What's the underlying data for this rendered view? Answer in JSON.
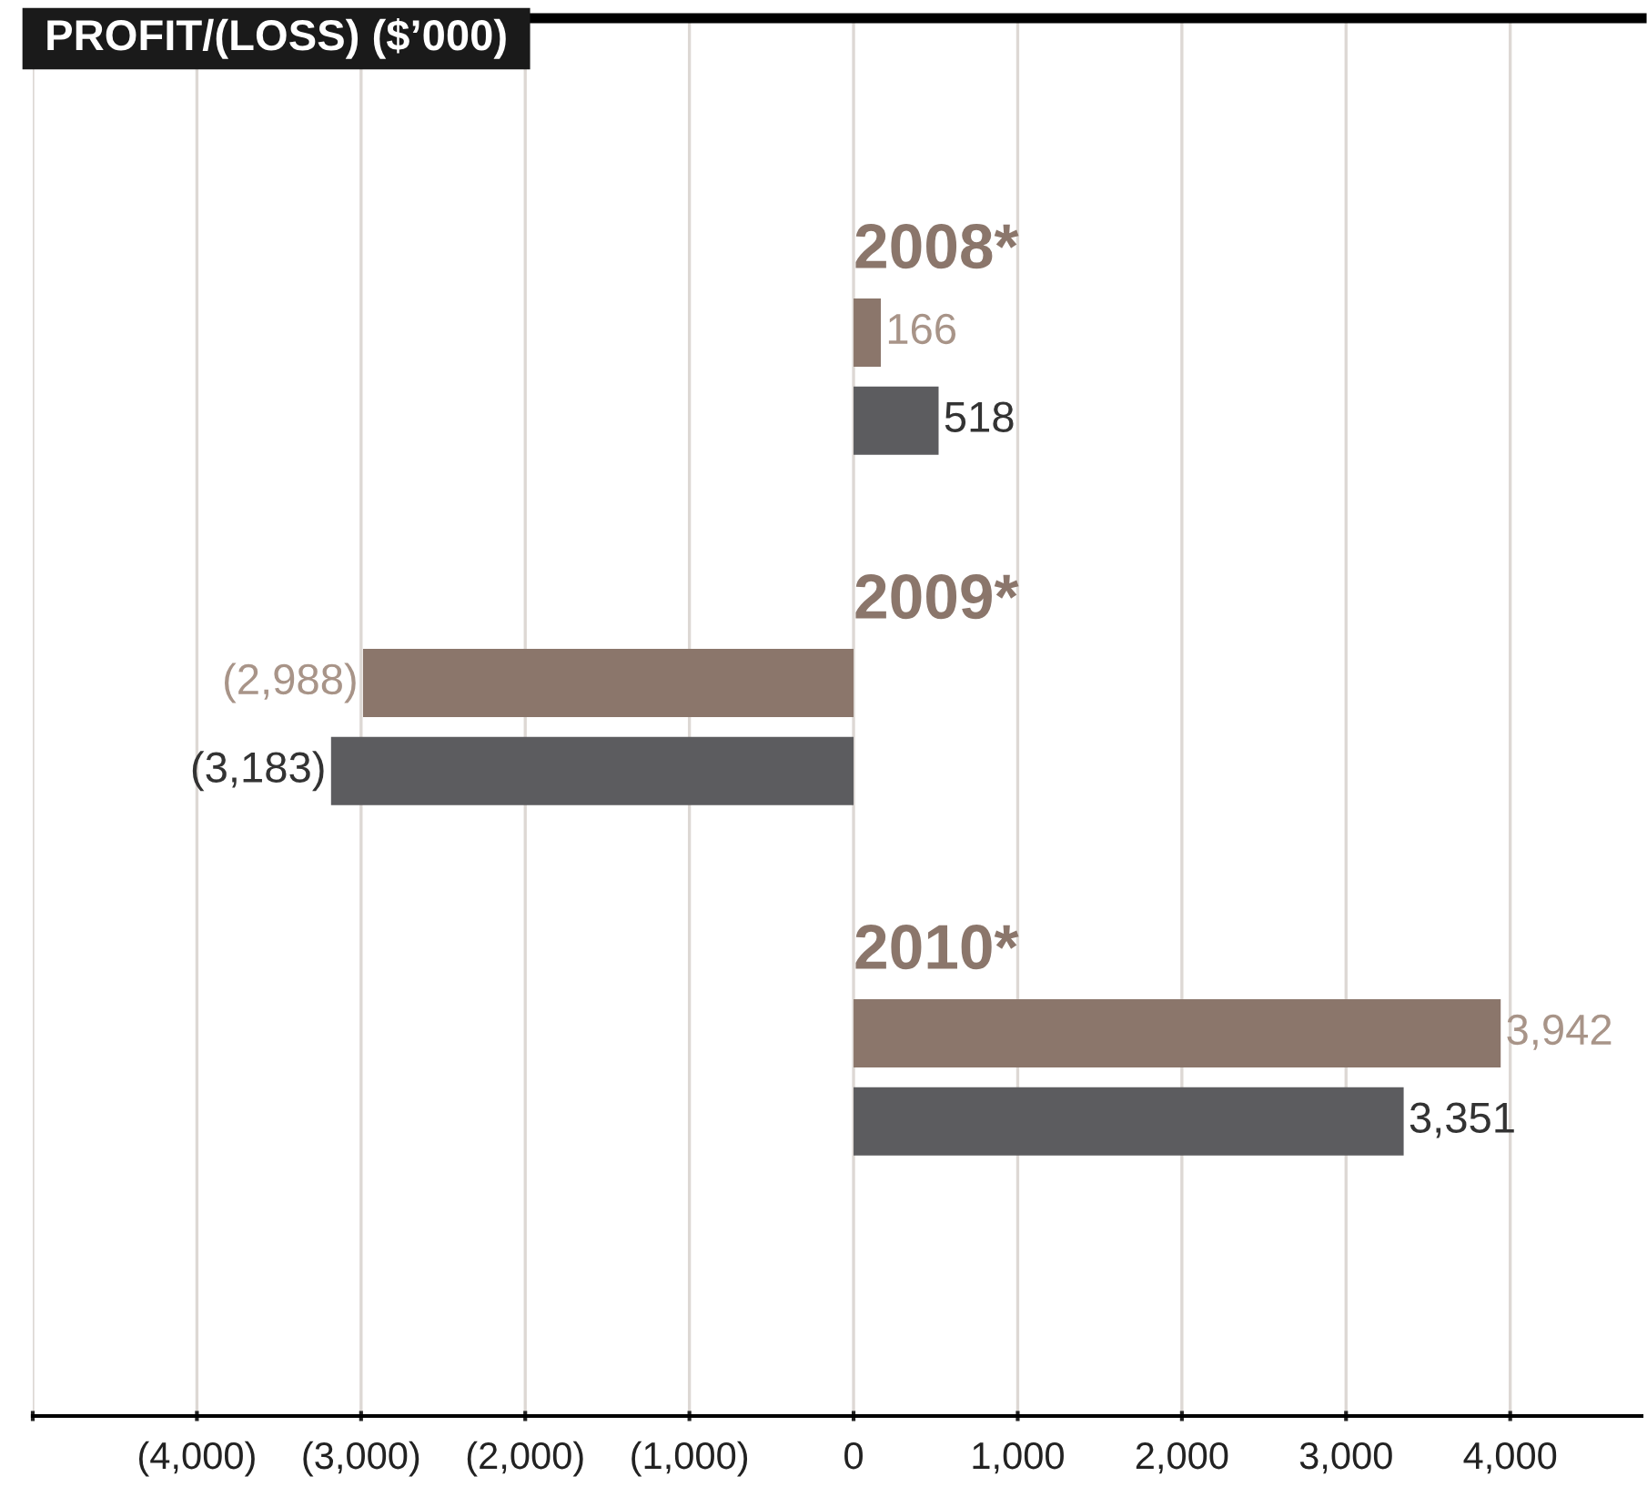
{
  "chart_data": {
    "type": "bar",
    "orientation": "horizontal",
    "title": "PROFIT/(LOSS) ($’000)",
    "categories": [
      "2008*",
      "2009*",
      "2010*"
    ],
    "series": [
      {
        "color": "#8b766b",
        "values": [
          166,
          -2988,
          3942
        ],
        "value_labels": [
          "166",
          "(2,988)",
          "3,942"
        ]
      },
      {
        "color": "#5c5c5f",
        "values": [
          518,
          -3183,
          3351
        ],
        "value_labels": [
          "518",
          "(3,183)",
          "3,351"
        ]
      }
    ],
    "xlim": [
      -5000,
      4800
    ],
    "xticks": [
      {
        "value": -5000,
        "label": null
      },
      {
        "value": -4000,
        "label": "(4,000)"
      },
      {
        "value": -3000,
        "label": "(3,000)"
      },
      {
        "value": -2000,
        "label": "(2,000)"
      },
      {
        "value": -1000,
        "label": "(1,000)"
      },
      0,
      {
        "value": 1000,
        "label": "1,000"
      },
      {
        "value": 2000,
        "label": "2,000"
      },
      {
        "value": 3000,
        "label": "3,000"
      },
      {
        "value": 4000,
        "label": "4,000"
      }
    ],
    "grid": "x",
    "legend": false,
    "tick_labels": "x"
  }
}
